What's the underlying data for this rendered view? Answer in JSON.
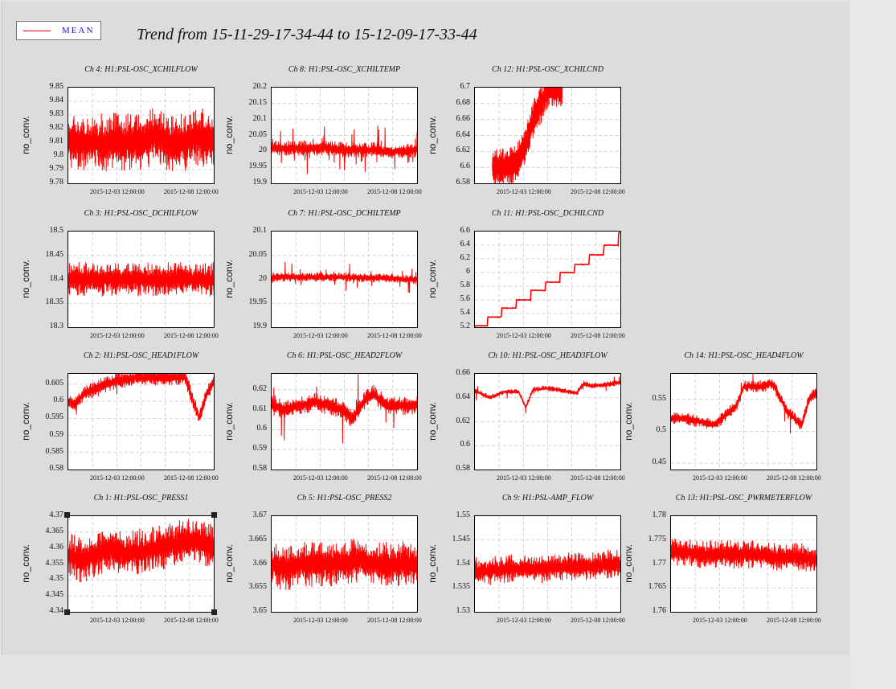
{
  "legend": {
    "label": "MEAN",
    "line_color": "#e00000"
  },
  "title": "Trend from 15-11-29-17-34-44 to 15-12-09-17-33-44",
  "colors": {
    "series": "#ff0000",
    "grid": "#c8c8c8",
    "plot_bg": "#ffffff",
    "canvas_bg": "#dcdcdc"
  },
  "chart_data": [
    {
      "type": "line",
      "title": "Ch 4: H1:PSL-OSC_XCHILFLOW",
      "ylabel": "no_conv.",
      "ylim": [
        9.78,
        9.85
      ],
      "yticks": [
        "9.85",
        "9.84",
        "9.83",
        "9.82",
        "9.81",
        "9.8",
        "9.79",
        "9.78"
      ],
      "xticks": [
        "2015-12-03 12:00:00",
        "2015-12-08 12:00:00"
      ],
      "xlim": [
        0,
        10
      ],
      "grid": true,
      "pattern": "noise",
      "series": [
        {
          "name": "MEAN",
          "x": [
            0,
            1,
            2,
            3,
            4,
            5,
            6,
            7,
            8,
            9,
            10
          ],
          "y": [
            9.81,
            9.81,
            9.81,
            9.81,
            9.81,
            9.81,
            9.815,
            9.81,
            9.81,
            9.815,
            9.81
          ],
          "band": 0.018
        }
      ]
    },
    {
      "type": "line",
      "title": "Ch 8: H1:PSL-OSC_XCHILTEMP",
      "ylabel": "no_conv.",
      "ylim": [
        19.9,
        20.2
      ],
      "yticks": [
        "20.2",
        "20.15",
        "20.1",
        "20.05",
        "20",
        "19.95",
        "19.9"
      ],
      "xticks": [
        "2015-12-03 12:00:00",
        "2015-12-08 12:00:00"
      ],
      "xlim": [
        0,
        10
      ],
      "grid": true,
      "pattern": "spiky",
      "series": [
        {
          "name": "MEAN",
          "x": [
            0,
            1,
            2,
            3,
            4,
            5,
            6,
            7,
            8,
            9,
            10
          ],
          "y": [
            20.01,
            20.01,
            20.01,
            20.01,
            20.01,
            20.005,
            20.005,
            20.005,
            20.0,
            20.0,
            20.005
          ],
          "band": 0.02
        }
      ]
    },
    {
      "type": "line",
      "title": "Ch 12: H1:PSL-OSC_XCHILCND",
      "ylabel": "no_conv.",
      "ylim": [
        6.58,
        6.7
      ],
      "yticks": [
        "6.7",
        "6.68",
        "6.66",
        "6.64",
        "6.62",
        "6.6",
        "6.58"
      ],
      "xticks": [
        "2015-12-03 12:00:00",
        "2015-12-08 12:00:00"
      ],
      "xlim": [
        0,
        10
      ],
      "grid": true,
      "pattern": "band",
      "series": [
        {
          "name": "MEAN",
          "x": [
            1.2,
            1.8,
            2.4,
            3.0,
            3.5,
            4.0,
            4.6,
            5.0,
            5.3,
            6.0
          ],
          "y": [
            6.6,
            6.6,
            6.6,
            6.61,
            6.63,
            6.66,
            6.68,
            6.695,
            6.7,
            6.7
          ],
          "band": 0.02
        }
      ]
    },
    {
      "type": "line",
      "title": "Ch 3: H1:PSL-OSC_DCHILFLOW",
      "ylabel": "no_conv.",
      "ylim": [
        18.3,
        18.5
      ],
      "yticks": [
        "18.5",
        "18.45",
        "18.4",
        "18.35",
        "18.3"
      ],
      "xticks": [
        "2015-12-03 12:00:00",
        "2015-12-08 12:00:00"
      ],
      "xlim": [
        0,
        10
      ],
      "grid": true,
      "pattern": "noise",
      "series": [
        {
          "name": "MEAN",
          "x": [
            0,
            1,
            2,
            3,
            4,
            5,
            6,
            7,
            8,
            9,
            10
          ],
          "y": [
            18.4,
            18.4,
            18.4,
            18.4,
            18.4,
            18.4,
            18.4,
            18.4,
            18.4,
            18.4,
            18.4
          ],
          "band": 0.03
        }
      ]
    },
    {
      "type": "line",
      "title": "Ch 7: H1:PSL-OSC_DCHILTEMP",
      "ylabel": "no_conv.",
      "ylim": [
        19.9,
        20.1
      ],
      "yticks": [
        "20.1",
        "20.05",
        "20",
        "19.95",
        "19.9"
      ],
      "xticks": [
        "2015-12-03 12:00:00",
        "2015-12-08 12:00:00"
      ],
      "xlim": [
        0,
        10
      ],
      "grid": true,
      "pattern": "spiky",
      "series": [
        {
          "name": "MEAN",
          "x": [
            0,
            1,
            2,
            3,
            4,
            5,
            6,
            7,
            8,
            9,
            10
          ],
          "y": [
            20.005,
            20.005,
            20.005,
            20.005,
            20.005,
            20.005,
            20.003,
            20.003,
            20.003,
            20.0,
            20.0
          ],
          "band": 0.008
        }
      ]
    },
    {
      "type": "line",
      "title": "Ch 11: H1:PSL-OSC_DCHILCND",
      "ylabel": "no_conv.",
      "ylim": [
        5.2,
        6.6
      ],
      "yticks": [
        "6.6",
        "6.4",
        "6.2",
        "6",
        "5.8",
        "5.6",
        "5.4",
        "5.2"
      ],
      "xticks": [
        "2015-12-03 12:00:00",
        "2015-12-08 12:00:00"
      ],
      "xlim": [
        0,
        10
      ],
      "grid": true,
      "pattern": "steps",
      "series": [
        {
          "name": "MEAN",
          "x": [
            0,
            1,
            2,
            3,
            4,
            5,
            6,
            7,
            8,
            9,
            10
          ],
          "y": [
            5.22,
            5.35,
            5.48,
            5.6,
            5.74,
            5.86,
            6.0,
            6.12,
            6.26,
            6.4,
            6.58
          ],
          "band": 0.0
        }
      ]
    },
    {
      "type": "line",
      "title": "Ch 2: H1:PSL-OSC_HEAD1FLOW",
      "ylabel": "no_conv.",
      "ylim": [
        0.58,
        0.608
      ],
      "yticks": [
        "0.605",
        "0.6",
        "0.595",
        "0.59",
        "0.585",
        "0.58"
      ],
      "xticks": [
        "2015-12-03 12:00:00",
        "2015-12-08 12:00:00"
      ],
      "xlim": [
        0,
        10
      ],
      "grid": true,
      "pattern": "drift",
      "series": [
        {
          "name": "MEAN",
          "x": [
            0,
            0.5,
            1,
            2,
            3,
            4,
            5,
            6,
            7,
            8,
            8.6,
            9,
            9.5,
            10
          ],
          "y": [
            0.6,
            0.599,
            0.602,
            0.604,
            0.6055,
            0.6065,
            0.607,
            0.607,
            0.607,
            0.6072,
            0.6,
            0.595,
            0.602,
            0.606
          ],
          "band": 0.002
        }
      ]
    },
    {
      "type": "line",
      "title": "Ch 6: H1:PSL-OSC_HEAD2FLOW",
      "ylabel": "no_conv.",
      "ylim": [
        0.58,
        0.628
      ],
      "yticks": [
        "0.62",
        "0.61",
        "0.6",
        "0.59",
        "0.58"
      ],
      "xticks": [
        "2015-12-03 12:00:00",
        "2015-12-08 12:00:00"
      ],
      "xlim": [
        0,
        10
      ],
      "grid": true,
      "pattern": "drift",
      "series": [
        {
          "name": "MEAN",
          "x": [
            0,
            1,
            2,
            3,
            4,
            5,
            5.5,
            6,
            6.5,
            7,
            8,
            9,
            10
          ],
          "y": [
            0.612,
            0.61,
            0.612,
            0.614,
            0.612,
            0.61,
            0.605,
            0.61,
            0.616,
            0.618,
            0.612,
            0.612,
            0.612
          ],
          "band": 0.004
        }
      ]
    },
    {
      "type": "line",
      "title": "Ch 10: H1:PSL-OSC_HEAD3FLOW",
      "ylabel": "no_conv.",
      "ylim": [
        0.58,
        0.66
      ],
      "yticks": [
        "0.66",
        "0.64",
        "0.62",
        "0.6",
        "0.58"
      ],
      "xticks": [
        "2015-12-03 12:00:00",
        "2015-12-08 12:00:00"
      ],
      "xlim": [
        0,
        10
      ],
      "grid": true,
      "pattern": "drift",
      "series": [
        {
          "name": "MEAN",
          "x": [
            0,
            1,
            2,
            3,
            3.5,
            4,
            5,
            6,
            7,
            7.5,
            8,
            9,
            10
          ],
          "y": [
            0.646,
            0.64,
            0.645,
            0.645,
            0.632,
            0.647,
            0.648,
            0.646,
            0.644,
            0.652,
            0.65,
            0.651,
            0.653
          ],
          "band": 0.002
        }
      ]
    },
    {
      "type": "line",
      "title": "Ch 14: H1:PSL-OSC_HEAD4FLOW",
      "ylabel": "no_conv.",
      "ylim": [
        0.44,
        0.59
      ],
      "yticks": [
        "0.55",
        "0.5",
        "0.45"
      ],
      "xticks": [
        "2015-12-03 12:00:00",
        "2015-12-08 12:00:00"
      ],
      "xlim": [
        0,
        10
      ],
      "grid": true,
      "pattern": "drift",
      "series": [
        {
          "name": "MEAN",
          "x": [
            0,
            1,
            2,
            3,
            3.5,
            4,
            4.5,
            5,
            6,
            7,
            8,
            8.5,
            9,
            9.5,
            10
          ],
          "y": [
            0.52,
            0.52,
            0.515,
            0.51,
            0.52,
            0.53,
            0.54,
            0.57,
            0.57,
            0.575,
            0.53,
            0.52,
            0.51,
            0.55,
            0.56
          ],
          "band": 0.008
        }
      ]
    },
    {
      "type": "line",
      "title": "Ch 1: H1:PSL-OSC_PRESS1",
      "ylabel": "no_conv.",
      "ylim": [
        4.34,
        4.37
      ],
      "yticks": [
        "4.37",
        "4.365",
        "4.36",
        "4.355",
        "4.35",
        "4.345",
        "4.34"
      ],
      "xticks": [
        "2015-12-03 12:00:00",
        "2015-12-08 12:00:00"
      ],
      "xlim": [
        0,
        10
      ],
      "grid": true,
      "pattern": "noise",
      "series": [
        {
          "name": "MEAN",
          "x": [
            0,
            1,
            2,
            3,
            4,
            5,
            6,
            7,
            8,
            9,
            10
          ],
          "y": [
            4.358,
            4.356,
            4.358,
            4.36,
            4.358,
            4.359,
            4.36,
            4.361,
            4.362,
            4.362,
            4.36
          ],
          "band": 0.006
        }
      ]
    },
    {
      "type": "line",
      "title": "Ch 5: H1:PSL-OSC_PRESS2",
      "ylabel": "no_conv.",
      "ylim": [
        3.65,
        3.67
      ],
      "yticks": [
        "3.67",
        "3.665",
        "3.66",
        "3.655",
        "3.65"
      ],
      "xticks": [
        "2015-12-03 12:00:00",
        "2015-12-08 12:00:00"
      ],
      "xlim": [
        0,
        10
      ],
      "grid": true,
      "pattern": "noise",
      "series": [
        {
          "name": "MEAN",
          "x": [
            0,
            1,
            2,
            3,
            4,
            5,
            6,
            7,
            8,
            9,
            10
          ],
          "y": [
            3.66,
            3.659,
            3.66,
            3.66,
            3.66,
            3.66,
            3.661,
            3.66,
            3.66,
            3.66,
            3.66
          ],
          "band": 0.004
        }
      ]
    },
    {
      "type": "line",
      "title": "Ch 9: H1:PSL-AMP_FLOW",
      "ylabel": "no_conv.",
      "ylim": [
        1.53,
        1.55
      ],
      "yticks": [
        "1.55",
        "1.545",
        "1.54",
        "1.535",
        "1.53"
      ],
      "xticks": [
        "2015-12-03 12:00:00",
        "2015-12-08 12:00:00"
      ],
      "xlim": [
        0,
        10
      ],
      "grid": true,
      "pattern": "noise",
      "series": [
        {
          "name": "MEAN",
          "x": [
            0,
            1,
            2,
            3,
            4,
            5,
            6,
            7,
            8,
            9,
            10
          ],
          "y": [
            1.5385,
            1.5385,
            1.539,
            1.539,
            1.539,
            1.539,
            1.5395,
            1.5395,
            1.5395,
            1.54,
            1.54
          ],
          "band": 0.0025
        }
      ]
    },
    {
      "type": "line",
      "title": "Ch 13: H1:PSL-OSC_PWRMETERFLOW",
      "ylabel": "no_conv.",
      "ylim": [
        1.76,
        1.78
      ],
      "yticks": [
        "1.78",
        "1.775",
        "1.77",
        "1.765",
        "1.76"
      ],
      "xticks": [
        "2015-12-03 12:00:00",
        "2015-12-08 12:00:00"
      ],
      "xlim": [
        0,
        10
      ],
      "grid": true,
      "pattern": "noise",
      "series": [
        {
          "name": "MEAN",
          "x": [
            0,
            1,
            2,
            3,
            4,
            5,
            6,
            7,
            8,
            9,
            10
          ],
          "y": [
            1.7725,
            1.7725,
            1.772,
            1.772,
            1.772,
            1.772,
            1.772,
            1.7715,
            1.7715,
            1.7715,
            1.771
          ],
          "band": 0.0025
        }
      ]
    }
  ]
}
